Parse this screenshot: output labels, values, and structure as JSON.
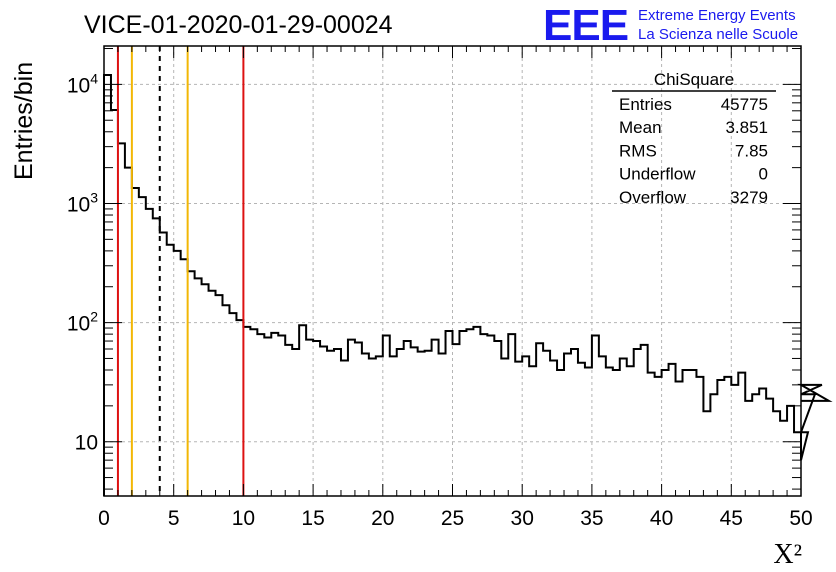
{
  "chart_data": {
    "type": "histogram",
    "title": "VICE-01-2020-01-29-00024",
    "xlabel": "X²",
    "ylabel": "Entries/bin",
    "xlim": [
      0,
      50
    ],
    "ylim": [
      3.5,
      21000
    ],
    "y_scale": "log",
    "grid": true,
    "bin_width": 0.5,
    "x_ticks": [
      "0",
      "5",
      "10",
      "15",
      "20",
      "25",
      "30",
      "35",
      "40",
      "45",
      "50"
    ],
    "y_ticks": [
      {
        "base": "10",
        "exp": "",
        "value": 10
      },
      {
        "base": "10",
        "exp": "2",
        "value": 100
      },
      {
        "base": "10",
        "exp": "3",
        "value": 1000
      },
      {
        "base": "10",
        "exp": "4",
        "value": 10000
      }
    ],
    "bin_values": [
      12000,
      6100,
      3200,
      2000,
      1350,
      1130,
      900,
      750,
      570,
      450,
      400,
      340,
      270,
      235,
      210,
      185,
      170,
      140,
      120,
      105,
      92,
      88,
      80,
      75,
      82,
      78,
      65,
      60,
      95,
      72,
      70,
      63,
      58,
      60,
      48,
      72,
      68,
      55,
      50,
      52,
      78,
      52,
      60,
      70,
      62,
      57,
      58,
      72,
      55,
      85,
      66,
      85,
      88,
      92,
      80,
      78,
      70,
      50,
      80,
      47,
      52,
      43,
      67,
      58,
      48,
      40,
      55,
      60,
      46,
      42,
      78,
      52,
      42,
      40,
      50,
      43,
      60,
      65,
      38,
      35,
      40,
      45,
      32,
      40,
      40,
      35,
      18,
      25,
      33,
      35,
      30,
      38,
      22,
      25,
      28,
      23,
      18,
      15,
      20,
      12,
      7,
      12,
      25,
      30,
      22
    ],
    "vertical_lines": [
      {
        "x": 1,
        "color": "#dd1111",
        "style": "solid"
      },
      {
        "x": 2,
        "color": "#f2b705",
        "style": "solid"
      },
      {
        "x": 4,
        "color": "#000000",
        "style": "dashed"
      },
      {
        "x": 6,
        "color": "#f2b705",
        "style": "solid"
      },
      {
        "x": 10,
        "color": "#dd1111",
        "style": "solid"
      }
    ],
    "stats": {
      "title": "ChiSquare",
      "rows": [
        {
          "label": "Entries",
          "value": "45775"
        },
        {
          "label": "Mean",
          "value": "3.851"
        },
        {
          "label": "RMS",
          "value": "7.85"
        },
        {
          "label": "Underflow",
          "value": "0"
        },
        {
          "label": "Overflow",
          "value": "3279"
        }
      ]
    }
  },
  "logo": {
    "mark": "EEE",
    "line1": "Extreme Energy Events",
    "line2": "La Scienza nelle Scuole",
    "color": "#1a1aee"
  }
}
